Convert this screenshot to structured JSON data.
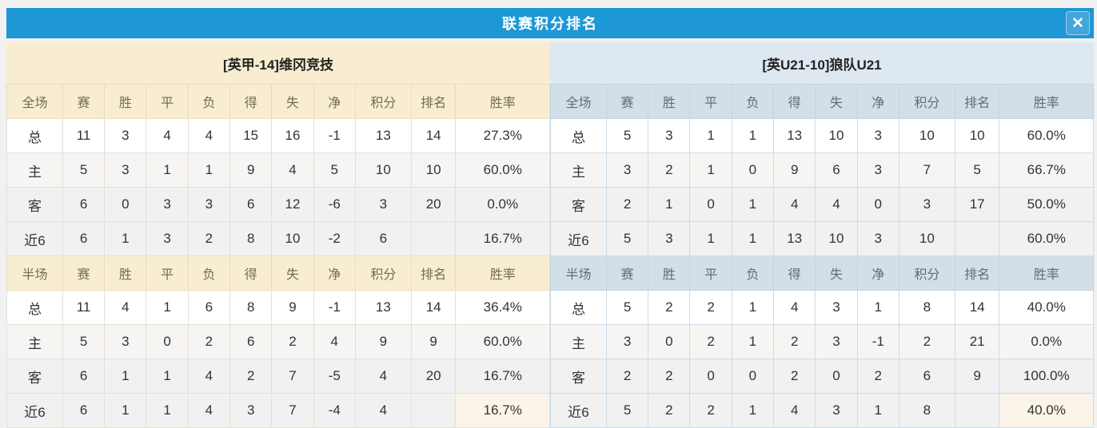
{
  "dialog": {
    "title": "联赛积分排名",
    "close_icon": "✕"
  },
  "colors": {
    "bar_blue": "#1e97d5",
    "close_blue": "#43a6db",
    "value_red": "#f43b2f",
    "rank_blue": "#3f86d2",
    "home_label_red": "#d84b5e",
    "away_label_blue": "#4f4fc8",
    "cream_header_bg": "#f8edd1",
    "cream_header_border": "#e7dcc0",
    "blue_header_bg": "#dde8f1",
    "blue_header_cell_bg": "#d2dfe9",
    "blue_border": "#c2d4e2",
    "highlight_cell_cream": "#fbf4e9"
  },
  "columns": [
    "赛",
    "胜",
    "平",
    "负",
    "得",
    "失",
    "净",
    "积分",
    "排名",
    "胜率"
  ],
  "teams": [
    {
      "name": "[英甲-14]维冈竞技",
      "theme": "cream",
      "sections": [
        {
          "label": "全场",
          "rows": [
            {
              "label": "总",
              "label_style": "dark",
              "values": [
                "11",
                "3",
                "4",
                "4",
                "15",
                "16",
                "-1",
                "13",
                "14",
                "27.3%"
              ]
            },
            {
              "label": "主",
              "label_style": "home",
              "values": [
                "5",
                "3",
                "1",
                "1",
                "9",
                "4",
                "5",
                "10",
                "10",
                "60.0%"
              ]
            },
            {
              "label": "客",
              "label_style": "away",
              "values": [
                "6",
                "0",
                "3",
                "3",
                "6",
                "12",
                "-6",
                "3",
                "20",
                "0.0%"
              ]
            },
            {
              "label": "近6",
              "label_style": "dark",
              "values": [
                "6",
                "1",
                "3",
                "2",
                "8",
                "10",
                "-2",
                "6",
                "",
                "16.7%"
              ]
            }
          ]
        },
        {
          "label": "半场",
          "rows": [
            {
              "label": "总",
              "label_style": "dark",
              "values": [
                "11",
                "4",
                "1",
                "6",
                "8",
                "9",
                "-1",
                "13",
                "14",
                "36.4%"
              ]
            },
            {
              "label": "主",
              "label_style": "home",
              "values": [
                "5",
                "3",
                "0",
                "2",
                "6",
                "2",
                "4",
                "9",
                "9",
                "60.0%"
              ]
            },
            {
              "label": "客",
              "label_style": "away",
              "values": [
                "6",
                "1",
                "1",
                "4",
                "2",
                "7",
                "-5",
                "4",
                "20",
                "16.7%"
              ]
            },
            {
              "label": "近6",
              "label_style": "dark",
              "values": [
                "6",
                "1",
                "1",
                "4",
                "3",
                "7",
                "-4",
                "4",
                "",
                "16.7%"
              ],
              "highlight_last_cell": true
            }
          ]
        }
      ]
    },
    {
      "name": "[英U21-10]狼队U21",
      "theme": "blue",
      "sections": [
        {
          "label": "全场",
          "rows": [
            {
              "label": "总",
              "label_style": "dark",
              "values": [
                "5",
                "3",
                "1",
                "1",
                "13",
                "10",
                "3",
                "10",
                "10",
                "60.0%"
              ]
            },
            {
              "label": "主",
              "label_style": "home",
              "values": [
                "3",
                "2",
                "1",
                "0",
                "9",
                "6",
                "3",
                "7",
                "5",
                "66.7%"
              ]
            },
            {
              "label": "客",
              "label_style": "away",
              "values": [
                "2",
                "1",
                "0",
                "1",
                "4",
                "4",
                "0",
                "3",
                "17",
                "50.0%"
              ]
            },
            {
              "label": "近6",
              "label_style": "dark",
              "values": [
                "5",
                "3",
                "1",
                "1",
                "13",
                "10",
                "3",
                "10",
                "",
                "60.0%"
              ]
            }
          ]
        },
        {
          "label": "半场",
          "rows": [
            {
              "label": "总",
              "label_style": "dark",
              "values": [
                "5",
                "2",
                "2",
                "1",
                "4",
                "3",
                "1",
                "8",
                "14",
                "40.0%"
              ]
            },
            {
              "label": "主",
              "label_style": "home",
              "values": [
                "3",
                "0",
                "2",
                "1",
                "2",
                "3",
                "-1",
                "2",
                "21",
                "0.0%"
              ]
            },
            {
              "label": "客",
              "label_style": "away",
              "values": [
                "2",
                "2",
                "0",
                "0",
                "2",
                "0",
                "2",
                "6",
                "9",
                "100.0%"
              ]
            },
            {
              "label": "近6",
              "label_style": "dark",
              "values": [
                "5",
                "2",
                "2",
                "1",
                "4",
                "3",
                "1",
                "8",
                "",
                "40.0%"
              ],
              "highlight_last_cell": true
            }
          ]
        }
      ]
    }
  ]
}
